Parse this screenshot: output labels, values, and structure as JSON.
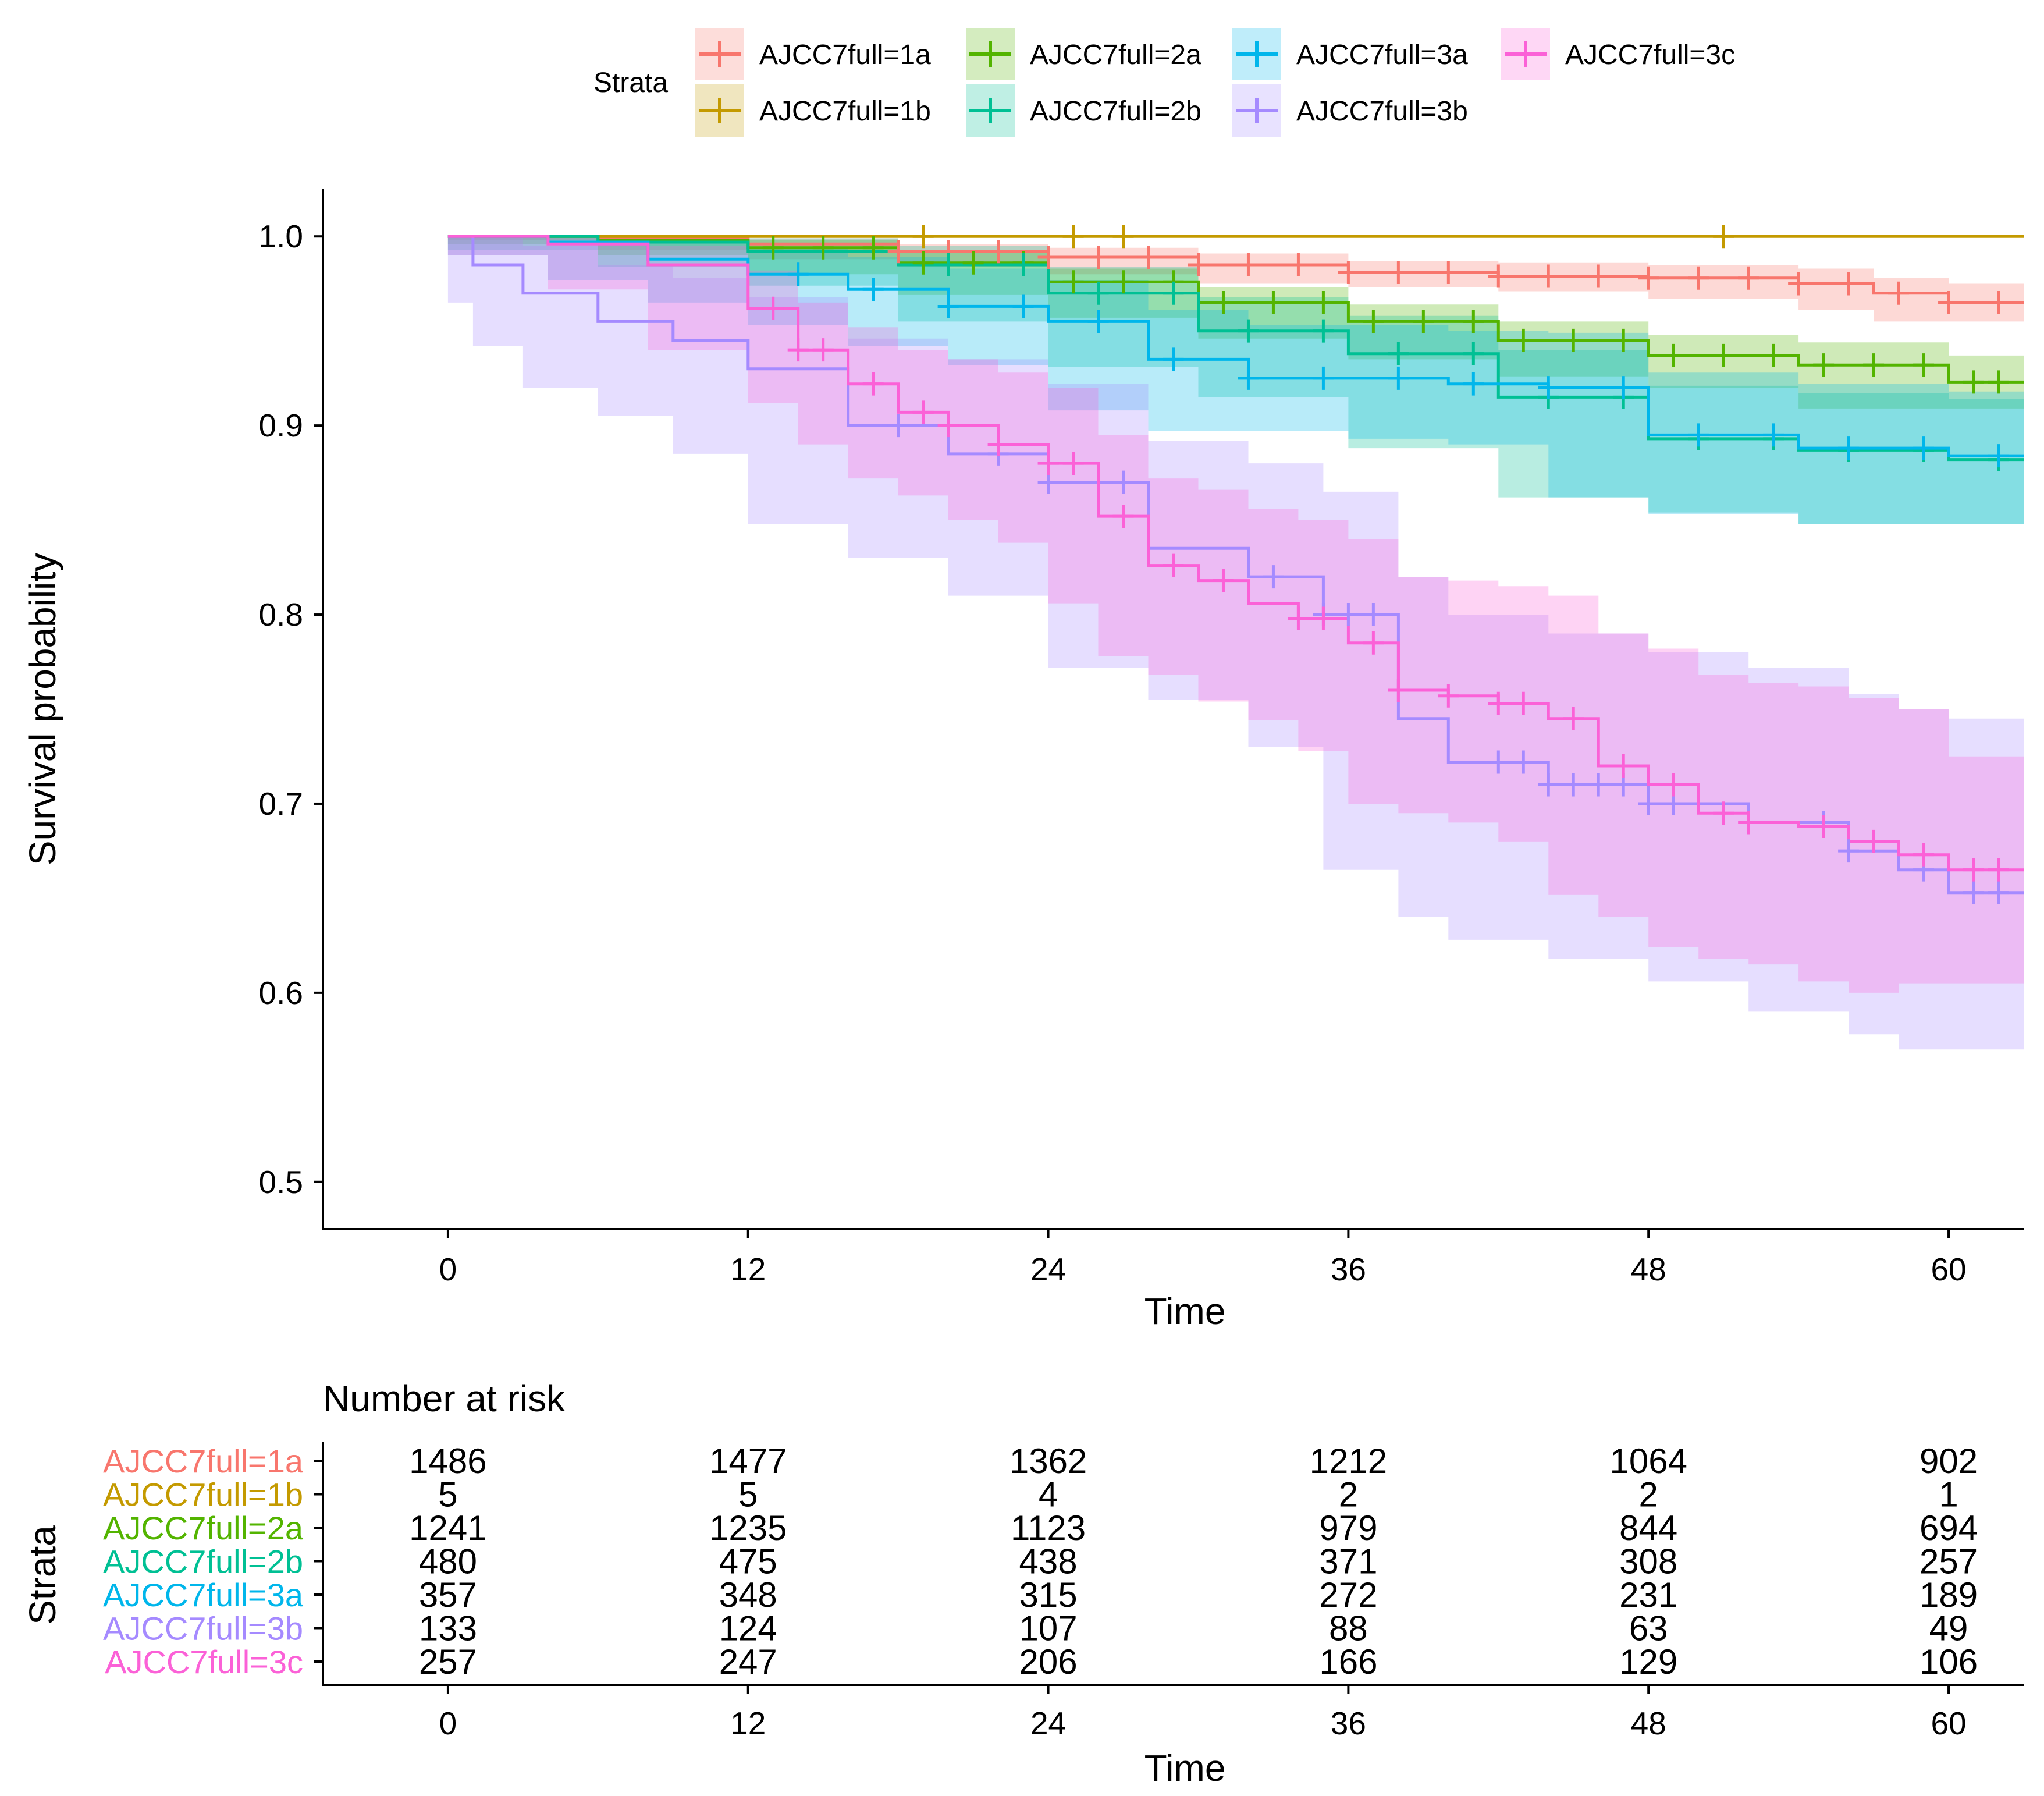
{
  "chart_data": {
    "type": "line",
    "subtype": "kaplan-meier",
    "legend_title": "Strata",
    "legend_position": "top",
    "xlabel": "Time",
    "ylabel": "Survival probability",
    "xlim": [
      -5,
      63
    ],
    "ylim": [
      0.475,
      1.025
    ],
    "xticks": [
      0,
      12,
      24,
      36,
      48,
      60
    ],
    "yticks": [
      0.5,
      0.6,
      0.7,
      0.8,
      0.9,
      1.0
    ],
    "ytick_labels": [
      "0.5",
      "0.6",
      "0.7",
      "0.8",
      "0.9",
      "1.0"
    ],
    "series": [
      {
        "name": "AJCC7full=1a",
        "color": "#F8766D",
        "x": [
          0,
          6,
          12,
          18,
          24,
          30,
          36,
          42,
          48,
          54,
          57,
          60,
          63
        ],
        "y": [
          1.0,
          0.999,
          0.996,
          0.992,
          0.989,
          0.985,
          0.981,
          0.979,
          0.978,
          0.975,
          0.97,
          0.965,
          0.965
        ],
        "lower": [
          1.0,
          0.998,
          0.993,
          0.988,
          0.984,
          0.98,
          0.975,
          0.973,
          0.971,
          0.967,
          0.961,
          0.955,
          0.955
        ],
        "upper": [
          1.0,
          1.0,
          0.999,
          0.996,
          0.994,
          0.991,
          0.987,
          0.986,
          0.985,
          0.983,
          0.978,
          0.975,
          0.975
        ],
        "censor_x": [
          18,
          20,
          22,
          24,
          26,
          28,
          30,
          32,
          34,
          36,
          38,
          40,
          42,
          44,
          46,
          48,
          50,
          52,
          54,
          56,
          58,
          60,
          62
        ]
      },
      {
        "name": "AJCC7full=1b",
        "color": "#C49A00",
        "x": [
          0,
          63
        ],
        "y": [
          1.0,
          1.0
        ],
        "lower": [
          1.0,
          1.0
        ],
        "upper": [
          1.0,
          1.0
        ],
        "censor_x": [
          19,
          25,
          27,
          51
        ]
      },
      {
        "name": "AJCC7full=2a",
        "color": "#53B400",
        "x": [
          0,
          6,
          12,
          18,
          24,
          30,
          36,
          42,
          48,
          54,
          60,
          63
        ],
        "y": [
          1.0,
          0.998,
          0.994,
          0.986,
          0.976,
          0.965,
          0.955,
          0.945,
          0.937,
          0.932,
          0.923,
          0.923
        ],
        "lower": [
          1.0,
          0.996,
          0.99,
          0.98,
          0.969,
          0.957,
          0.946,
          0.935,
          0.926,
          0.92,
          0.909,
          0.909
        ],
        "upper": [
          1.0,
          1.0,
          0.998,
          0.992,
          0.983,
          0.973,
          0.964,
          0.955,
          0.948,
          0.944,
          0.937,
          0.937
        ],
        "censor_x": [
          13,
          15,
          17,
          19,
          21,
          23,
          25,
          27,
          29,
          31,
          33,
          35,
          37,
          39,
          41,
          43,
          45,
          47,
          49,
          51,
          53,
          55,
          57,
          59,
          61,
          62
        ]
      },
      {
        "name": "AJCC7full=2b",
        "color": "#00C094",
        "x": [
          0,
          6,
          12,
          18,
          24,
          30,
          36,
          42,
          48,
          54,
          60,
          63
        ],
        "y": [
          1.0,
          0.997,
          0.992,
          0.985,
          0.97,
          0.95,
          0.938,
          0.915,
          0.893,
          0.887,
          0.882,
          0.882
        ],
        "lower": [
          1.0,
          0.993,
          0.984,
          0.974,
          0.955,
          0.931,
          0.915,
          0.888,
          0.862,
          0.854,
          0.848,
          0.848
        ],
        "upper": [
          1.0,
          1.0,
          0.999,
          0.995,
          0.984,
          0.968,
          0.958,
          0.94,
          0.921,
          0.917,
          0.914,
          0.914
        ],
        "censor_x": [
          20,
          23,
          26,
          29,
          32,
          35,
          38,
          41,
          44,
          47,
          50,
          53,
          56,
          59,
          62
        ]
      },
      {
        "name": "AJCC7full=3a",
        "color": "#00B6EB",
        "x": [
          0,
          4,
          8,
          12,
          16,
          20,
          24,
          28,
          32,
          36,
          40,
          44,
          48,
          54,
          60,
          63
        ],
        "y": [
          1.0,
          0.997,
          0.988,
          0.98,
          0.972,
          0.963,
          0.955,
          0.935,
          0.925,
          0.925,
          0.922,
          0.92,
          0.895,
          0.888,
          0.884,
          0.884
        ],
        "lower": [
          1.0,
          0.99,
          0.977,
          0.965,
          0.953,
          0.942,
          0.932,
          0.908,
          0.897,
          0.897,
          0.893,
          0.89,
          0.862,
          0.853,
          0.848,
          0.848
        ],
        "upper": [
          1.0,
          1.0,
          0.998,
          0.994,
          0.989,
          0.983,
          0.977,
          0.961,
          0.953,
          0.953,
          0.95,
          0.949,
          0.928,
          0.922,
          0.918,
          0.918
        ],
        "censor_x": [
          14,
          17,
          20,
          23,
          26,
          29,
          32,
          35,
          38,
          41,
          44,
          47,
          50,
          53,
          56,
          59,
          62
        ]
      },
      {
        "name": "AJCC7full=3b",
        "color": "#A58AFF",
        "x": [
          0,
          1,
          3,
          6,
          9,
          12,
          16,
          20,
          24,
          28,
          32,
          35,
          38,
          40,
          44,
          48,
          52,
          56,
          58,
          60,
          63
        ],
        "y": [
          1.0,
          0.985,
          0.97,
          0.955,
          0.945,
          0.93,
          0.9,
          0.885,
          0.87,
          0.835,
          0.82,
          0.8,
          0.745,
          0.722,
          0.71,
          0.7,
          0.69,
          0.675,
          0.665,
          0.653,
          0.653
        ],
        "lower": [
          1.0,
          0.965,
          0.942,
          0.92,
          0.905,
          0.885,
          0.848,
          0.83,
          0.81,
          0.772,
          0.755,
          0.73,
          0.665,
          0.64,
          0.628,
          0.618,
          0.606,
          0.59,
          0.578,
          0.57,
          0.57
        ],
        "upper": [
          1.0,
          1.0,
          0.995,
          0.985,
          0.978,
          0.968,
          0.946,
          0.935,
          0.922,
          0.892,
          0.88,
          0.865,
          0.82,
          0.8,
          0.79,
          0.78,
          0.772,
          0.758,
          0.75,
          0.745,
          0.745
        ],
        "censor_x": [
          18,
          22,
          24,
          27,
          33,
          35,
          36,
          37,
          42,
          43,
          44,
          45,
          46,
          47,
          48,
          49,
          55,
          56,
          59,
          61,
          62
        ]
      },
      {
        "name": "AJCC7full=3c",
        "color": "#FB61D7",
        "x": [
          0,
          4,
          8,
          12,
          14,
          16,
          18,
          20,
          22,
          24,
          26,
          28,
          30,
          32,
          34,
          36,
          38,
          40,
          42,
          44,
          46,
          48,
          50,
          52,
          54,
          56,
          58,
          60,
          63
        ],
        "y": [
          1.0,
          0.996,
          0.985,
          0.962,
          0.94,
          0.922,
          0.907,
          0.9,
          0.89,
          0.88,
          0.852,
          0.826,
          0.818,
          0.806,
          0.798,
          0.785,
          0.76,
          0.757,
          0.753,
          0.745,
          0.72,
          0.71,
          0.695,
          0.69,
          0.688,
          0.68,
          0.673,
          0.665,
          0.665
        ],
        "lower": [
          1.0,
          0.99,
          0.972,
          0.94,
          0.912,
          0.89,
          0.872,
          0.863,
          0.85,
          0.838,
          0.806,
          0.778,
          0.768,
          0.754,
          0.744,
          0.728,
          0.7,
          0.695,
          0.69,
          0.68,
          0.652,
          0.64,
          0.624,
          0.618,
          0.615,
          0.606,
          0.6,
          0.605,
          0.605
        ],
        "upper": [
          1.0,
          1.0,
          0.995,
          0.982,
          0.965,
          0.952,
          0.94,
          0.935,
          0.928,
          0.92,
          0.895,
          0.872,
          0.866,
          0.856,
          0.85,
          0.84,
          0.82,
          0.818,
          0.815,
          0.81,
          0.79,
          0.782,
          0.768,
          0.764,
          0.762,
          0.756,
          0.75,
          0.725,
          0.725
        ],
        "censor_x": [
          13,
          14,
          15,
          17,
          19,
          20,
          22,
          24,
          25,
          27,
          29,
          31,
          34,
          35,
          37,
          38,
          40,
          42,
          43,
          45,
          47,
          49,
          51,
          52,
          55,
          57,
          59,
          61,
          62
        ]
      }
    ],
    "risk_table": {
      "title": "Number at risk",
      "ylabel": "Strata",
      "xlabel": "Time",
      "times": [
        0,
        12,
        24,
        36,
        48,
        60
      ],
      "rows": [
        {
          "name": "AJCC7full=1a",
          "color": "#F8766D",
          "values": [
            "1486",
            "1477",
            "1362",
            "1212",
            "1064",
            "902"
          ]
        },
        {
          "name": "AJCC7full=1b",
          "color": "#C49A00",
          "values": [
            "5",
            "5",
            "4",
            "2",
            "2",
            "1"
          ]
        },
        {
          "name": "AJCC7full=2a",
          "color": "#53B400",
          "values": [
            "1241",
            "1235",
            "1123",
            "979",
            "844",
            "694"
          ]
        },
        {
          "name": "AJCC7full=2b",
          "color": "#00C094",
          "values": [
            "480",
            "475",
            "438",
            "371",
            "308",
            "257"
          ]
        },
        {
          "name": "AJCC7full=3a",
          "color": "#00B6EB",
          "values": [
            "357",
            "348",
            "315",
            "272",
            "231",
            "189"
          ]
        },
        {
          "name": "AJCC7full=3b",
          "color": "#A58AFF",
          "values": [
            "133",
            "124",
            "107",
            "88",
            "63",
            "49"
          ]
        },
        {
          "name": "AJCC7full=3c",
          "color": "#FB61D7",
          "values": [
            "257",
            "247",
            "206",
            "166",
            "129",
            "106"
          ]
        }
      ]
    }
  }
}
